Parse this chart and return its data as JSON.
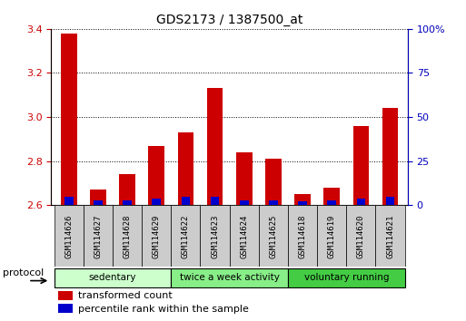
{
  "title": "GDS2173 / 1387500_at",
  "samples": [
    "GSM114626",
    "GSM114627",
    "GSM114628",
    "GSM114629",
    "GSM114622",
    "GSM114623",
    "GSM114624",
    "GSM114625",
    "GSM114618",
    "GSM114619",
    "GSM114620",
    "GSM114621"
  ],
  "transformed_count": [
    3.38,
    2.67,
    2.74,
    2.87,
    2.93,
    3.13,
    2.84,
    2.81,
    2.65,
    2.68,
    2.96,
    3.04
  ],
  "percentile_rank": [
    5,
    3,
    3,
    4,
    5,
    5,
    3,
    3,
    2,
    3,
    4,
    5
  ],
  "ylim_left": [
    2.6,
    3.4
  ],
  "ylim_right": [
    0,
    100
  ],
  "yticks_left": [
    2.6,
    2.8,
    3.0,
    3.2,
    3.4
  ],
  "yticks_right": [
    0,
    25,
    50,
    75,
    100
  ],
  "bar_color_red": "#cc0000",
  "bar_color_blue": "#0000cc",
  "bar_width": 0.55,
  "groups": [
    {
      "label": "sedentary",
      "indices": [
        0,
        1,
        2,
        3
      ],
      "color": "#ccffcc"
    },
    {
      "label": "twice a week activity",
      "indices": [
        4,
        5,
        6,
        7
      ],
      "color": "#88ee88"
    },
    {
      "label": "voluntary running",
      "indices": [
        8,
        9,
        10,
        11
      ],
      "color": "#44cc44"
    }
  ],
  "protocol_label": "protocol",
  "legend_items": [
    {
      "label": "transformed count",
      "color": "#cc0000"
    },
    {
      "label": "percentile rank within the sample",
      "color": "#0000cc"
    }
  ],
  "tick_color_left": "#cc0000",
  "tick_color_right": "#0000bb",
  "bg_color": "#ffffff",
  "sample_cell_color": "#cccccc",
  "figsize": [
    5.13,
    3.54
  ],
  "dpi": 100
}
